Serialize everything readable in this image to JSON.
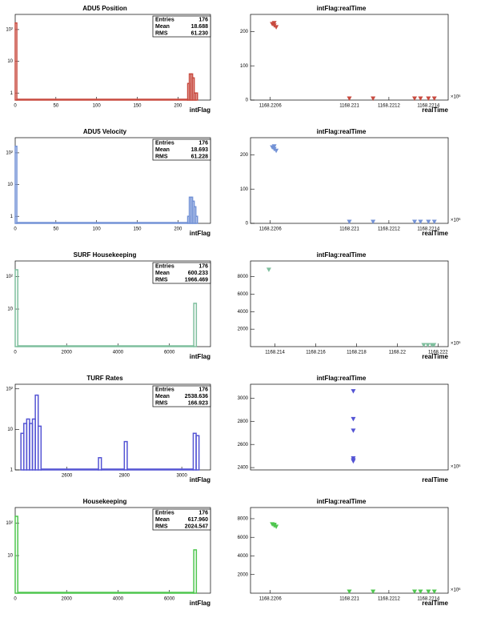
{
  "chart_data": [
    {
      "type": "histogram",
      "title": "ADU5 Position",
      "x_label": "intFlag",
      "color": "#c84a3f",
      "log_y": true,
      "bins": [
        0,
        2,
        212,
        214,
        216,
        218,
        220,
        222,
        224
      ],
      "counts": [
        161,
        0,
        2,
        4,
        4,
        3,
        1,
        1
      ],
      "xlim": [
        0,
        240
      ],
      "xticks": [
        0,
        50,
        100,
        150,
        200
      ],
      "ylim": [
        0.6,
        300
      ],
      "yticks": [
        1,
        10,
        {
          "value": 100,
          "label": "10²"
        }
      ],
      "stats": [
        {
          "label": "Entries",
          "value": 176
        },
        {
          "label": "Mean",
          "value": 18.688
        },
        {
          "label": "RMS",
          "value": 61.23,
          "value_label": "61.230"
        }
      ]
    },
    {
      "type": "scatter",
      "title": "intFlag:realTime",
      "x_label": "realTime",
      "x_exponent_label": "×10⁶",
      "color": "#c84a3f",
      "x": [
        1168.22061,
        1168.22062,
        1168.22063,
        1168.22062,
        1168.221,
        1168.22112,
        1168.22133,
        1168.22136,
        1168.2214,
        1168.22143
      ],
      "values": [
        222,
        218,
        213,
        225,
        0,
        0,
        0,
        0,
        0,
        0
      ],
      "xlim": [
        1168.2205,
        1168.2215
      ],
      "xticks": [
        1168.2206,
        1168.221,
        1168.2212,
        1168.2214
      ],
      "ylim": [
        0,
        250
      ],
      "yticks": [
        0,
        100,
        200
      ]
    },
    {
      "type": "histogram",
      "title": "ADU5 Velocity",
      "x_label": "intFlag",
      "color": "#7392d6",
      "log_y": true,
      "bins": [
        0,
        2,
        212,
        214,
        216,
        218,
        220,
        222,
        224
      ],
      "counts": [
        161,
        0,
        1,
        4,
        4,
        3,
        2,
        1
      ],
      "xlim": [
        0,
        240
      ],
      "xticks": [
        0,
        50,
        100,
        150,
        200
      ],
      "ylim": [
        0.6,
        300
      ],
      "yticks": [
        1,
        10,
        {
          "value": 100,
          "label": "10²"
        }
      ],
      "stats": [
        {
          "label": "Entries",
          "value": 176
        },
        {
          "label": "Mean",
          "value": 18.693
        },
        {
          "label": "RMS",
          "value": 61.228
        }
      ]
    },
    {
      "type": "scatter",
      "title": "intFlag:realTime",
      "x_label": "realTime",
      "x_exponent_label": "×10⁶",
      "color": "#7392d6",
      "x": [
        1168.22061,
        1168.22062,
        1168.22063,
        1168.22062,
        1168.221,
        1168.22112,
        1168.22133,
        1168.22136,
        1168.2214,
        1168.22143
      ],
      "values": [
        222,
        217,
        212,
        225,
        0,
        0,
        0,
        0,
        0,
        0
      ],
      "xlim": [
        1168.2205,
        1168.2215
      ],
      "xticks": [
        1168.2206,
        1168.221,
        1168.2212,
        1168.2214
      ],
      "ylim": [
        0,
        250
      ],
      "yticks": [
        0,
        100,
        200
      ]
    },
    {
      "type": "histogram",
      "title": "SURF Housekeeping",
      "x_label": "intFlag",
      "color": "#7fbf9e",
      "log_y": true,
      "bins": [
        0,
        100,
        6950,
        7050
      ],
      "counts": [
        161,
        0,
        15
      ],
      "xlim": [
        0,
        7600
      ],
      "xticks": [
        0,
        2000,
        4000,
        6000
      ],
      "ylim": [
        0.7,
        300
      ],
      "yticks": [
        10,
        {
          "value": 100,
          "label": "10²"
        }
      ],
      "stats": [
        {
          "label": "Entries",
          "value": 176
        },
        {
          "label": "Mean",
          "value": 600.233
        },
        {
          "label": "RMS",
          "value": 1966.469
        }
      ]
    },
    {
      "type": "scatter",
      "title": "intFlag:realTime",
      "x_label": "realTime",
      "x_exponent_label": "×10⁶",
      "color": "#7fbf9e",
      "x": [
        1168.2137,
        1168.2213,
        1168.2215,
        1168.2217,
        1168.2218
      ],
      "values": [
        8800,
        0,
        0,
        0,
        0
      ],
      "xlim": [
        1168.2128,
        1168.2225
      ],
      "xticks": [
        1168.214,
        1168.216,
        1168.218,
        1168.22,
        1168.222
      ],
      "ylim": [
        0,
        9800
      ],
      "yticks": [
        2000,
        4000,
        6000,
        8000
      ]
    },
    {
      "type": "histogram",
      "title": "TURF Rates",
      "x_label": "intFlag",
      "color": "#5454d4",
      "log_y": true,
      "bins": [
        2440,
        2450,
        2460,
        2470,
        2480,
        2490,
        2500,
        2510,
        2710,
        2720,
        2800,
        2810,
        3040,
        3050,
        3060
      ],
      "counts": [
        8,
        14,
        18,
        14,
        18,
        70,
        12,
        0,
        2,
        0,
        5,
        0,
        8,
        7
      ],
      "xlim": [
        2420,
        3100
      ],
      "xticks": [
        2600,
        2800,
        3000
      ],
      "ylim": [
        1,
        130
      ],
      "yticks": [
        1,
        10,
        {
          "value": 100,
          "label": "10²"
        }
      ],
      "stats": [
        {
          "label": "Entries",
          "value": 176
        },
        {
          "label": "Mean",
          "value": 2538.636
        },
        {
          "label": "RMS",
          "value": 166.923
        }
      ]
    },
    {
      "type": "scatter",
      "title": "intFlag:realTime",
      "x_label": "realTime",
      "x_exponent_label": "×10⁶",
      "color": "#5454d4",
      "x": [
        1168.22102,
        1168.22102,
        1168.22102,
        1168.22102,
        1168.22102,
        1168.22102
      ],
      "values": [
        3060,
        2820,
        2720,
        2480,
        2465,
        2455
      ],
      "xlim": [
        1168.2205,
        1168.2215
      ],
      "ylim": [
        2380,
        3120
      ],
      "yticks": [
        2400,
        2600,
        2800,
        3000
      ]
    },
    {
      "type": "histogram",
      "title": "Housekeeping",
      "x_label": "intFlag",
      "color": "#4fc64f",
      "log_y": true,
      "bins": [
        0,
        100,
        6950,
        7050
      ],
      "counts": [
        161,
        0,
        15
      ],
      "xlim": [
        0,
        7600
      ],
      "xticks": [
        0,
        2000,
        4000,
        6000
      ],
      "ylim": [
        0.7,
        300
      ],
      "yticks": [
        10,
        {
          "value": 100,
          "label": "10²"
        }
      ],
      "stats": [
        {
          "label": "Entries",
          "value": 176
        },
        {
          "label": "Mean",
          "value": 617.96,
          "value_label": "617.960"
        },
        {
          "label": "RMS",
          "value": 2024.547
        }
      ]
    },
    {
      "type": "scatter",
      "title": "intFlag:realTime",
      "x_label": "realTime",
      "x_exponent_label": "×10⁶",
      "color": "#4fc64f",
      "x": [
        1168.22061,
        1168.22062,
        1168.22063,
        1168.22062,
        1168.221,
        1168.22112,
        1168.22133,
        1168.22136,
        1168.2214,
        1168.22143
      ],
      "values": [
        7400,
        7250,
        7150,
        7350,
        0,
        0,
        0,
        0,
        0,
        0
      ],
      "xlim": [
        1168.2205,
        1168.2215
      ],
      "xticks": [
        1168.2206,
        1168.221,
        1168.2212,
        1168.2214
      ],
      "ylim": [
        0,
        9200
      ],
      "yticks": [
        2000,
        4000,
        6000,
        8000
      ]
    }
  ]
}
